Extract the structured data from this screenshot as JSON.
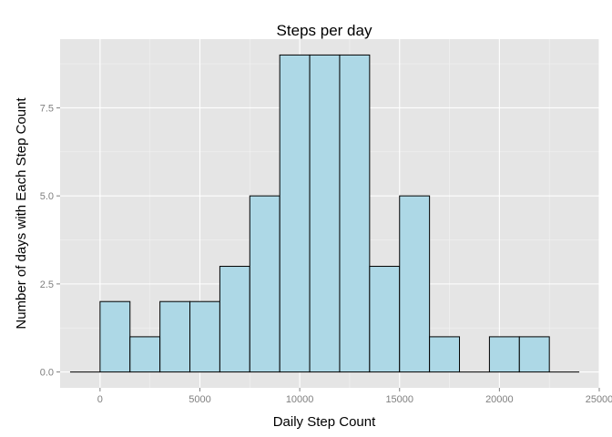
{
  "chart_data": {
    "type": "bar",
    "title": "Steps per day",
    "xlabel": "Daily Step Count",
    "ylabel": "Number of days with Each Step Count",
    "bin_width": 1500,
    "bins": [
      {
        "start": -1500,
        "end": 0,
        "count": 0
      },
      {
        "start": 0,
        "end": 1500,
        "count": 2
      },
      {
        "start": 1500,
        "end": 3000,
        "count": 1
      },
      {
        "start": 3000,
        "end": 4500,
        "count": 2
      },
      {
        "start": 4500,
        "end": 6000,
        "count": 2
      },
      {
        "start": 6000,
        "end": 7500,
        "count": 3
      },
      {
        "start": 7500,
        "end": 9000,
        "count": 5
      },
      {
        "start": 9000,
        "end": 10500,
        "count": 9
      },
      {
        "start": 10500,
        "end": 12000,
        "count": 9
      },
      {
        "start": 12000,
        "end": 13500,
        "count": 9
      },
      {
        "start": 13500,
        "end": 15000,
        "count": 3
      },
      {
        "start": 15000,
        "end": 16500,
        "count": 5
      },
      {
        "start": 16500,
        "end": 18000,
        "count": 1
      },
      {
        "start": 18000,
        "end": 19500,
        "count": 0
      },
      {
        "start": 19500,
        "end": 21000,
        "count": 1
      },
      {
        "start": 21000,
        "end": 22500,
        "count": 1
      },
      {
        "start": 22500,
        "end": 24000,
        "count": 0
      }
    ],
    "xlim": [
      -2000,
      25000
    ],
    "ylim": [
      -0.45,
      9.45
    ],
    "x_ticks": [
      0,
      5000,
      10000,
      15000,
      20000,
      25000
    ],
    "x_tick_labels": [
      "0",
      "5000",
      "10000",
      "15000",
      "20000",
      "25000"
    ],
    "y_ticks": [
      0,
      2.5,
      5,
      7.5
    ],
    "y_tick_labels": [
      "0.0",
      "2.5",
      "5.0",
      "7.5"
    ],
    "grid": true,
    "colors": {
      "panel_background": "#e5e5e5",
      "grid_major": "#ffffff",
      "grid_minor": "#f2f2f2",
      "bar_fill": "#add8e6",
      "bar_outline": "#000000",
      "tick_label": "#7f7f7f"
    }
  }
}
